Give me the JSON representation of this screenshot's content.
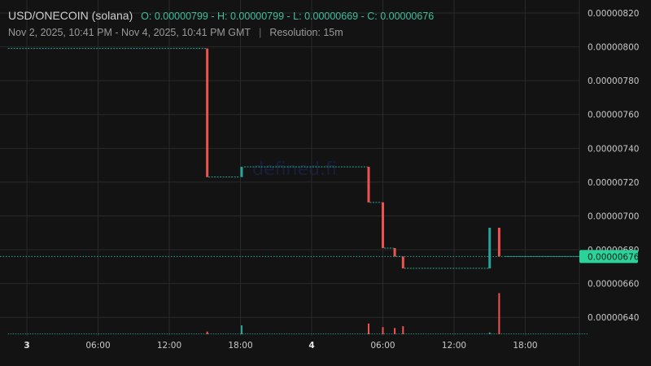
{
  "header": {
    "pair": "USD/ONECOIN (solana)",
    "ohlc": {
      "open_label": "O:",
      "open": "0.00000799",
      "high_label": "H:",
      "high": "0.00000799",
      "low_label": "L:",
      "low": "0.00000669",
      "close_label": "C:",
      "close": "0.00000676"
    },
    "range": "Nov 2, 2025, 10:41 PM - Nov 4, 2025, 10:41 PM GMT",
    "separator": "|",
    "resolution": "Resolution: 15m"
  },
  "watermark": "defined.fi",
  "colors": {
    "up": "#26a69a",
    "down": "#ef5350",
    "background": "#131313",
    "grid": "#2a2a2a",
    "last_price_badge": "#2bd39b"
  },
  "chart_data": {
    "type": "candlestick",
    "title": "",
    "xlabel": "",
    "ylabel": "",
    "ylim": [
      6.3e-06,
      8.2e-06
    ],
    "y_ticks": [
      "0.00000820",
      "0.00000800",
      "0.00000780",
      "0.00000760",
      "0.00000740",
      "0.00000720",
      "0.00000700",
      "0.00000680",
      "0.00000660",
      "0.00000640"
    ],
    "x_ticks": [
      {
        "label": "3",
        "hour": 0,
        "bold": true
      },
      {
        "label": "06:00",
        "hour": 6
      },
      {
        "label": "12:00",
        "hour": 12
      },
      {
        "label": "18:00",
        "hour": 18
      },
      {
        "label": "4",
        "hour": 24,
        "bold": true
      },
      {
        "label": "06:00",
        "hour": 30
      },
      {
        "label": "12:00",
        "hour": 36
      },
      {
        "label": "18:00",
        "hour": 42
      }
    ],
    "x_range_hours": [
      -1.6,
      47.3
    ],
    "last_price": "0.00000676",
    "price_line_segments": [
      {
        "start": -1.6,
        "end": 15.1,
        "price": 7.99e-06,
        "dir": "flat"
      },
      {
        "start": 15.3,
        "end": 17.9,
        "price": 7.23e-06,
        "dir": "flat"
      },
      {
        "start": 18.3,
        "end": 28.7,
        "price": 7.29e-06,
        "dir": "flat"
      },
      {
        "start": 28.9,
        "end": 29.9,
        "price": 7.08e-06,
        "dir": "flat"
      },
      {
        "start": 30.1,
        "end": 30.9,
        "price": 6.81e-06,
        "dir": "flat"
      },
      {
        "start": 31.1,
        "end": 31.6,
        "price": 6.76e-06,
        "dir": "flat"
      },
      {
        "start": 31.8,
        "end": 38.9,
        "price": 6.69e-06,
        "dir": "flat"
      },
      {
        "start": 40.3,
        "end": 47.3,
        "price": 6.76e-06,
        "dir": "flat"
      }
    ],
    "candles": [
      {
        "t": 15.2,
        "open": 7.99e-06,
        "high": 7.99e-06,
        "low": 7.23e-06,
        "close": 7.23e-06
      },
      {
        "t": 18.1,
        "open": 7.23e-06,
        "high": 7.29e-06,
        "low": 7.23e-06,
        "close": 7.29e-06
      },
      {
        "t": 28.8,
        "open": 7.29e-06,
        "high": 7.29e-06,
        "low": 7.08e-06,
        "close": 7.08e-06
      },
      {
        "t": 30.0,
        "open": 7.08e-06,
        "high": 7.08e-06,
        "low": 6.81e-06,
        "close": 6.81e-06
      },
      {
        "t": 31.0,
        "open": 6.81e-06,
        "high": 6.81e-06,
        "low": 6.76e-06,
        "close": 6.76e-06
      },
      {
        "t": 31.7,
        "open": 6.76e-06,
        "high": 6.76e-06,
        "low": 6.69e-06,
        "close": 6.69e-06
      },
      {
        "t": 39.0,
        "open": 6.69e-06,
        "high": 6.93e-06,
        "low": 6.69e-06,
        "close": 6.93e-06
      },
      {
        "t": 39.8,
        "open": 6.93e-06,
        "high": 6.93e-06,
        "low": 6.76e-06,
        "close": 6.76e-06
      }
    ],
    "volume": [
      {
        "t": 15.2,
        "value": 0.15,
        "dir": "down"
      },
      {
        "t": 18.1,
        "value": 0.5,
        "dir": "up"
      },
      {
        "t": 28.8,
        "value": 0.6,
        "dir": "down"
      },
      {
        "t": 30.0,
        "value": 0.4,
        "dir": "down"
      },
      {
        "t": 31.0,
        "value": 0.35,
        "dir": "down"
      },
      {
        "t": 31.7,
        "value": 0.45,
        "dir": "down"
      },
      {
        "t": 39.0,
        "value": 0.1,
        "dir": "up"
      },
      {
        "t": 39.8,
        "value": 2.3,
        "dir": "down"
      }
    ]
  }
}
